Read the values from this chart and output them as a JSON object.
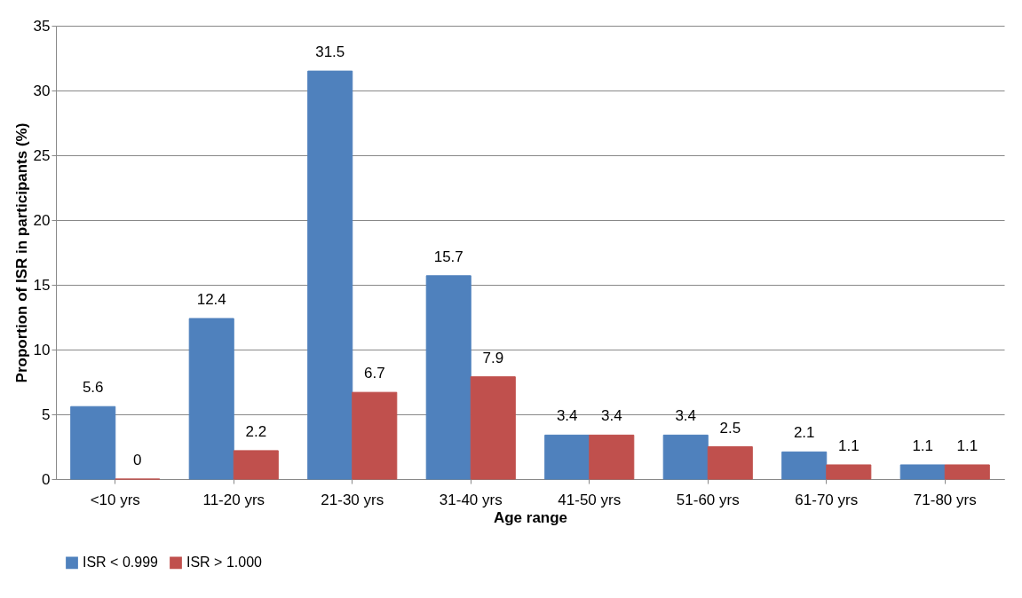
{
  "chart_data": {
    "type": "bar",
    "xlabel": "Age range",
    "ylabel": "Proportion of ISR in participants (%)",
    "categories": [
      "<10 yrs",
      "11-20 yrs",
      "21-30 yrs",
      "31-40 yrs",
      "41-50 yrs",
      "51-60 yrs",
      "61-70 yrs",
      "71-80 yrs"
    ],
    "series": [
      {
        "name": "ISR < 0.999",
        "color": "#4f81bd",
        "values": [
          5.6,
          12.4,
          31.5,
          15.7,
          3.4,
          3.4,
          2.1,
          1.1
        ]
      },
      {
        "name": "ISR > 1.000",
        "color": "#c0504d",
        "values": [
          0,
          2.2,
          6.7,
          7.9,
          3.4,
          2.5,
          1.1,
          1.1
        ]
      }
    ],
    "ylim": [
      0,
      35
    ],
    "yticks": [
      0,
      5,
      10,
      15,
      20,
      25,
      30,
      35
    ],
    "grid": "y",
    "legend": "bottom",
    "data_labels": true
  }
}
